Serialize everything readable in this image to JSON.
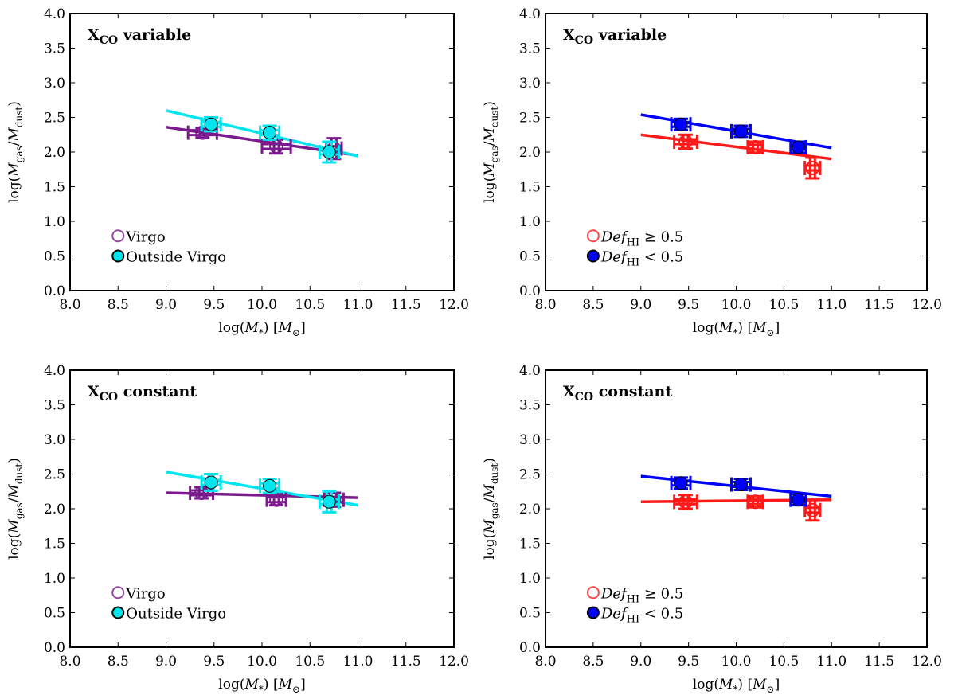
{
  "figure": {
    "colors": {
      "virgo": "#7b1a8c",
      "outside": "#00e5ee",
      "deficient": "#ff1a1a",
      "normal": "#0000ff"
    },
    "legend_virgo_variant": [
      "Virgo",
      "Outside Virgo"
    ],
    "legend_hi_variant": [
      "Def_HI ≥ 0.5",
      "Def_HI < 0.5"
    ]
  },
  "chart_data": [
    {
      "panel": "top-left",
      "type": "scatter",
      "title": "X_CO variable",
      "xlabel": "log(M_*) [M_⊙]",
      "ylabel": "log(M_gas/M_dust)",
      "xlim": [
        8.0,
        12.0
      ],
      "ylim": [
        0.0,
        4.0
      ],
      "xticks": [
        "8.0",
        "8.5",
        "9.0",
        "9.5",
        "10.0",
        "10.5",
        "11.0",
        "11.5",
        "12.0"
      ],
      "yticks": [
        "0.0",
        "0.5",
        "1.0",
        "1.5",
        "2.0",
        "2.5",
        "3.0",
        "3.5",
        "4.0"
      ],
      "legend_position": "lower-left",
      "series": [
        {
          "name": "Virgo",
          "color": "#7b1a8c",
          "marker": "open-circle",
          "x": [
            9.38,
            10.15,
            10.75
          ],
          "y": [
            2.28,
            2.08,
            2.05
          ],
          "xerr": [
            0.15,
            0.15,
            0.08
          ],
          "yerr": [
            0.07,
            0.1,
            0.15
          ],
          "fit": {
            "x": [
              9.0,
              11.0
            ],
            "y": [
              2.36,
              1.95
            ]
          }
        },
        {
          "name": "Outside Virgo",
          "color": "#00e5ee",
          "marker": "filled-circle",
          "x": [
            9.47,
            10.08,
            10.7
          ],
          "y": [
            2.4,
            2.28,
            2.0
          ],
          "xerr": [
            0.1,
            0.1,
            0.1
          ],
          "yerr": [
            0.1,
            0.1,
            0.15
          ],
          "fit": {
            "x": [
              9.0,
              11.0
            ],
            "y": [
              2.6,
              1.94
            ]
          }
        }
      ]
    },
    {
      "panel": "top-right",
      "type": "scatter",
      "title": "X_CO variable",
      "xlabel": "log(M_*) [M_⊙]",
      "ylabel": "log(M_gas/M_dust)",
      "xlim": [
        8.0,
        12.0
      ],
      "ylim": [
        0.0,
        4.0
      ],
      "xticks": [
        "8.0",
        "8.5",
        "9.0",
        "9.5",
        "10.0",
        "10.5",
        "11.0",
        "11.5",
        "12.0"
      ],
      "yticks": [
        "0.0",
        "0.5",
        "1.0",
        "1.5",
        "2.0",
        "2.5",
        "3.0",
        "3.5",
        "4.0"
      ],
      "legend_position": "lower-left",
      "series": [
        {
          "name": "Def_HI ≥ 0.5",
          "color": "#ff1a1a",
          "marker": "open-circle",
          "x": [
            9.47,
            10.2,
            10.8
          ],
          "y": [
            2.15,
            2.07,
            1.77
          ],
          "xerr": [
            0.12,
            0.08,
            0.08
          ],
          "yerr": [
            0.1,
            0.08,
            0.15
          ],
          "fit": {
            "x": [
              9.0,
              11.0
            ],
            "y": [
              2.25,
              1.9
            ]
          }
        },
        {
          "name": "Def_HI < 0.5",
          "color": "#0000ff",
          "marker": "filled-circle",
          "x": [
            9.42,
            10.05,
            10.65
          ],
          "y": [
            2.4,
            2.3,
            2.07
          ],
          "xerr": [
            0.1,
            0.1,
            0.08
          ],
          "yerr": [
            0.08,
            0.08,
            0.08
          ],
          "fit": {
            "x": [
              9.0,
              11.0
            ],
            "y": [
              2.54,
              2.06
            ]
          }
        }
      ]
    },
    {
      "panel": "bottom-left",
      "type": "scatter",
      "title": "X_CO constant",
      "xlabel": "log(M_*) [M_⊙]",
      "ylabel": "log(M_gas/M_dust)",
      "xlim": [
        8.0,
        12.0
      ],
      "ylim": [
        0.0,
        4.0
      ],
      "xticks": [
        "8.0",
        "8.5",
        "9.0",
        "9.5",
        "10.0",
        "10.5",
        "11.0",
        "11.5",
        "12.0"
      ],
      "yticks": [
        "0.0",
        "0.5",
        "1.0",
        "1.5",
        "2.0",
        "2.5",
        "3.0",
        "3.5",
        "4.0"
      ],
      "legend_position": "lower-left",
      "series": [
        {
          "name": "Virgo",
          "color": "#7b1a8c",
          "marker": "open-circle",
          "x": [
            9.37,
            10.15,
            10.75
          ],
          "y": [
            2.23,
            2.13,
            2.13
          ],
          "xerr": [
            0.12,
            0.1,
            0.1
          ],
          "yerr": [
            0.08,
            0.08,
            0.1
          ],
          "fit": {
            "x": [
              9.0,
              11.0
            ],
            "y": [
              2.23,
              2.16
            ]
          }
        },
        {
          "name": "Outside Virgo",
          "color": "#00e5ee",
          "marker": "filled-circle",
          "x": [
            9.47,
            10.08,
            10.7
          ],
          "y": [
            2.38,
            2.33,
            2.1
          ],
          "xerr": [
            0.1,
            0.1,
            0.1
          ],
          "yerr": [
            0.12,
            0.1,
            0.15
          ],
          "fit": {
            "x": [
              9.0,
              11.0
            ],
            "y": [
              2.53,
              2.05
            ]
          }
        }
      ]
    },
    {
      "panel": "bottom-right",
      "type": "scatter",
      "title": "X_CO constant",
      "xlabel": "log(M_*) [M_⊙]",
      "ylabel": "log(M_gas/M_dust)",
      "xlim": [
        8.0,
        12.0
      ],
      "ylim": [
        0.0,
        4.0
      ],
      "xticks": [
        "8.0",
        "8.5",
        "9.0",
        "9.5",
        "10.0",
        "10.5",
        "11.0",
        "11.5",
        "12.0"
      ],
      "yticks": [
        "0.0",
        "0.5",
        "1.0",
        "1.5",
        "2.0",
        "2.5",
        "3.0",
        "3.5",
        "4.0"
      ],
      "legend_position": "lower-left",
      "series": [
        {
          "name": "Def_HI ≥ 0.5",
          "color": "#ff1a1a",
          "marker": "open-circle",
          "x": [
            9.47,
            10.2,
            10.8
          ],
          "y": [
            2.1,
            2.1,
            1.98
          ],
          "xerr": [
            0.12,
            0.08,
            0.08
          ],
          "yerr": [
            0.1,
            0.08,
            0.15
          ],
          "fit": {
            "x": [
              9.0,
              11.0
            ],
            "y": [
              2.1,
              2.13
            ]
          }
        },
        {
          "name": "Def_HI < 0.5",
          "color": "#0000ff",
          "marker": "filled-circle",
          "x": [
            9.42,
            10.05,
            10.65
          ],
          "y": [
            2.37,
            2.35,
            2.13
          ],
          "xerr": [
            0.1,
            0.1,
            0.08
          ],
          "yerr": [
            0.08,
            0.08,
            0.08
          ],
          "fit": {
            "x": [
              9.0,
              11.0
            ],
            "y": [
              2.47,
              2.18
            ]
          }
        }
      ]
    }
  ]
}
